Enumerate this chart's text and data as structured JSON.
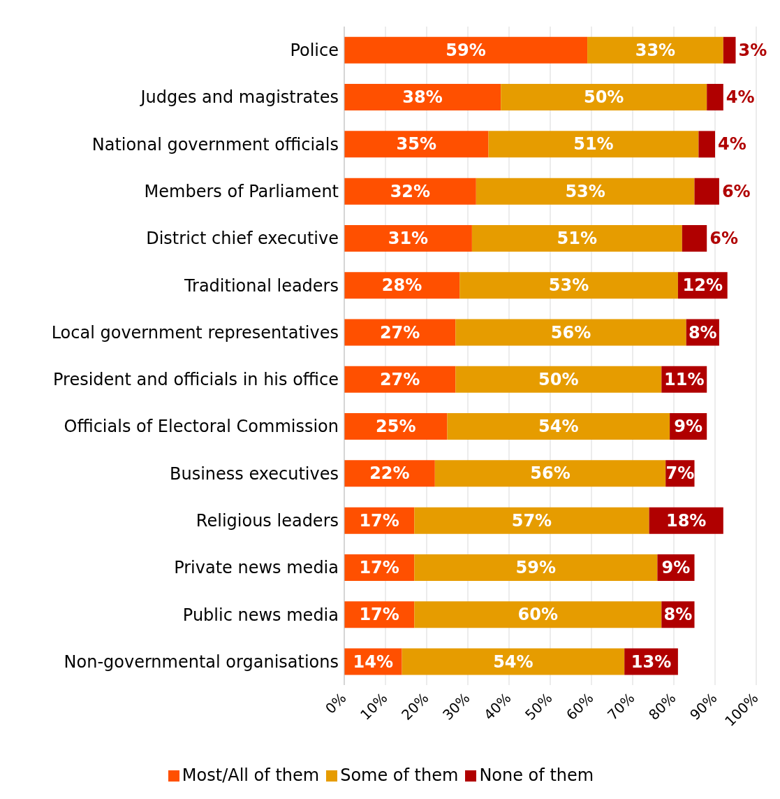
{
  "chart_data": {
    "type": "bar",
    "orientation": "horizontal",
    "stacked": true,
    "categories": [
      "Police",
      "Judges and magistrates",
      "National government officials",
      "Members of Parliament",
      "District chief executive",
      "Traditional leaders",
      "Local government representatives",
      "President and officials in his office",
      "Officials of Electoral Commission",
      "Business executives",
      "Religious leaders",
      "Private news media",
      "Public news media",
      "Non-governmental organisations"
    ],
    "series": [
      {
        "name": "Most/All of them",
        "color": "#ff5000",
        "values": [
          59,
          38,
          35,
          32,
          31,
          28,
          27,
          27,
          25,
          22,
          17,
          17,
          17,
          14
        ],
        "value_labels": [
          "59%",
          "38%",
          "35%",
          "32%",
          "31%",
          "28%",
          "27%",
          "27%",
          "25%",
          "22%",
          "17%",
          "17%",
          "17%",
          "14%"
        ]
      },
      {
        "name": "Some of them",
        "color": "#e69c00",
        "values": [
          33,
          50,
          51,
          53,
          51,
          53,
          56,
          50,
          54,
          56,
          57,
          59,
          60,
          54
        ],
        "value_labels": [
          "33%",
          "50%",
          "51%",
          "53%",
          "51%",
          "53%",
          "56%",
          "50%",
          "54%",
          "56%",
          "57%",
          "59%",
          "60%",
          "54%"
        ]
      },
      {
        "name": "None of them",
        "color": "#b00000",
        "values": [
          3,
          4,
          4,
          6,
          6,
          12,
          8,
          11,
          9,
          7,
          18,
          9,
          8,
          13
        ],
        "value_labels": [
          "3%",
          "4%",
          "4%",
          "6%",
          "6%",
          "12%",
          "8%",
          "11%",
          "9%",
          "7%",
          "18%",
          "9%",
          "8%",
          "13%"
        ]
      }
    ],
    "xlim": [
      0,
      100
    ],
    "xticks": [
      {
        "value": 0,
        "label": "0%"
      },
      {
        "value": 10,
        "label": "10%"
      },
      {
        "value": 20,
        "label": "20%"
      },
      {
        "value": 30,
        "label": "30%"
      },
      {
        "value": 40,
        "label": "40%"
      },
      {
        "value": 50,
        "label": "50%"
      },
      {
        "value": 60,
        "label": "60%"
      },
      {
        "value": 70,
        "label": "70%"
      },
      {
        "value": 80,
        "label": "80%"
      },
      {
        "value": 90,
        "label": "90%"
      },
      {
        "value": 100,
        "label": "100%"
      }
    ],
    "grid": "x",
    "legend": "bottom"
  }
}
